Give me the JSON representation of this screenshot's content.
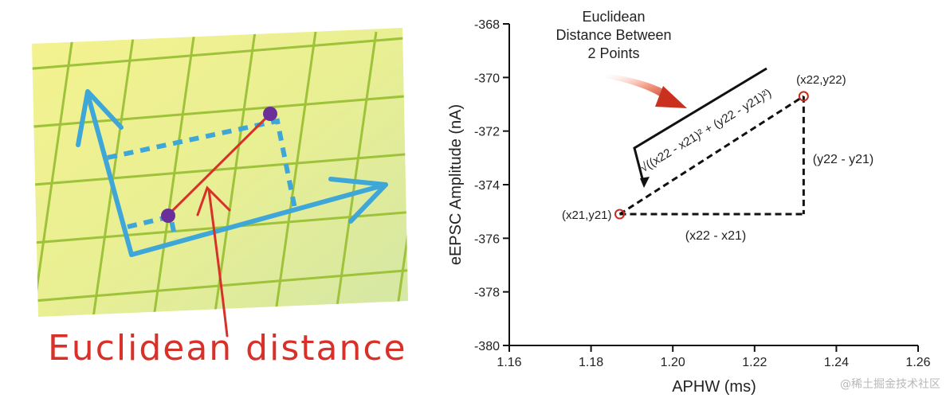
{
  "left_panel": {
    "caption": "Euclidean distance"
  },
  "chart_data": {
    "type": "scatter",
    "xlabel": "APHW (ms)",
    "ylabel": "eEPSC Amplitude (nA)",
    "xlim": [
      1.16,
      1.26
    ],
    "ylim": [
      -380,
      -368
    ],
    "x_ticks": [
      "1.16",
      "1.18",
      "1.20",
      "1.22",
      "1.24",
      "1.26"
    ],
    "y_ticks": [
      "-368",
      "-370",
      "-372",
      "-374",
      "-376",
      "-378",
      "-380"
    ],
    "points": [
      {
        "x": 1.187,
        "y": -375.1,
        "label": "(x21,y21)"
      },
      {
        "x": 1.232,
        "y": -370.7,
        "label": "(x22,y22)"
      }
    ],
    "annotation_title": [
      "Euclidean",
      "Distance Between",
      "2 Points"
    ],
    "dx_label": "(x22 - x21)",
    "dy_label": "(y22 - y21)",
    "formula": "√((x22 - x21)² + (y22 - y21)²)",
    "colors": {
      "point": "#cc2a1e",
      "line": "#111111",
      "arrow": "#d9402a"
    }
  },
  "watermark": "@稀土掘金技术社区"
}
